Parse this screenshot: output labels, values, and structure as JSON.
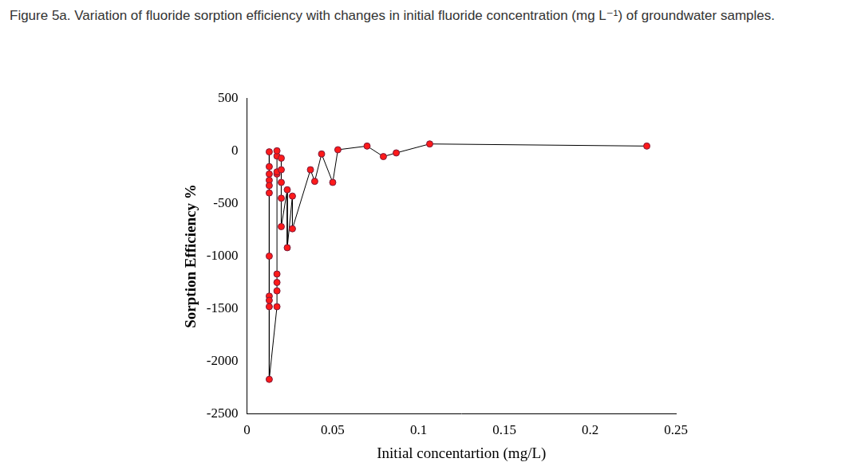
{
  "chart_data": {
    "type": "line",
    "title": "Figure 5a. Variation of fluoride sorption efficiency with changes in initial fluoride concentration (mg L⁻¹) of groundwater samples.",
    "x_label": "Initial concentartion (mg/L)",
    "y_label": "Sorption Efficiency %",
    "x": [
      0.013,
      0.013,
      0.013,
      0.013,
      0.013,
      0.013,
      0.013,
      0.013,
      0.013,
      0.013,
      0.013,
      0.0175,
      0.0175,
      0.0175,
      0.0175,
      0.0175,
      0.0175,
      0.0175,
      0.0175,
      0.02,
      0.02,
      0.02,
      0.02,
      0.02,
      0.0235,
      0.0235,
      0.0265,
      0.0265,
      0.037,
      0.0395,
      0.0435,
      0.05,
      0.053,
      0.07,
      0.0795,
      0.087,
      0.1065,
      0.233
    ],
    "series": [
      {
        "name": "Sorption Efficiency %",
        "color": "#ff1a1a",
        "marker": "circle",
        "line_style": "solid",
        "values": [
          -10,
          -150,
          -220,
          -280,
          -330,
          -400,
          -1000,
          -1380,
          -1420,
          -1480,
          -2170,
          -1480,
          -1330,
          -1250,
          -1170,
          -220,
          -200,
          -50,
          0,
          -70,
          -180,
          -300,
          -450,
          -720,
          -370,
          -920,
          -430,
          -740,
          -180,
          -290,
          -30,
          -300,
          10,
          45,
          -55,
          -20,
          65,
          45
        ]
      }
    ],
    "xlim": [
      0,
      0.25
    ],
    "xticks": [
      0,
      0.05,
      0.1,
      0.15,
      0.2,
      0.25
    ],
    "ylim": [
      -2500,
      500
    ],
    "yticks": [
      -2500,
      -2000,
      -1500,
      -1000,
      -500,
      0,
      500
    ],
    "grid": false
  }
}
